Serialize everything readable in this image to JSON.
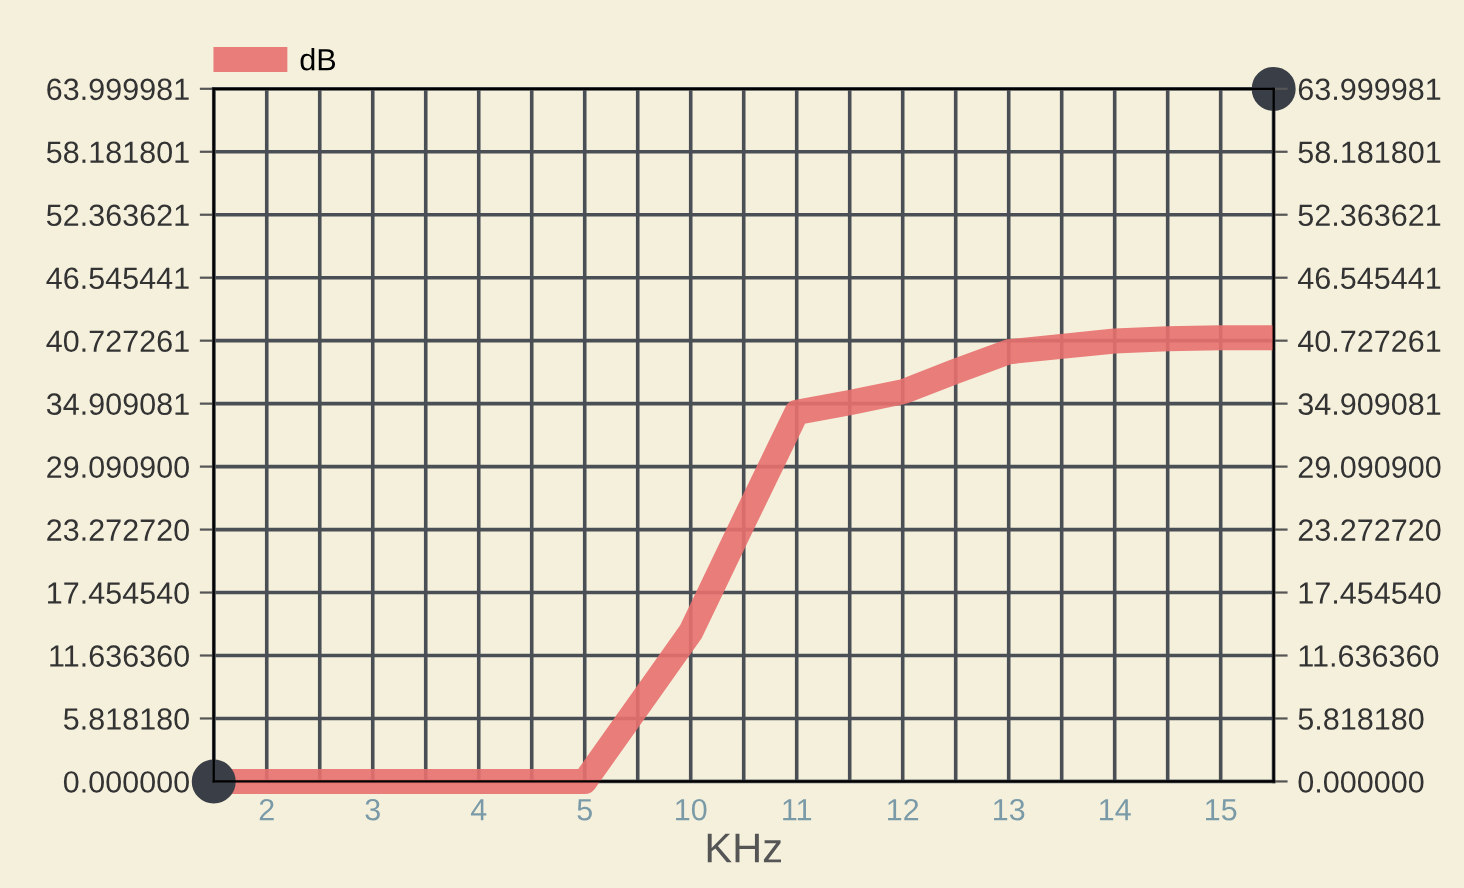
{
  "chart_data": {
    "type": "line",
    "xlabel": "KHz",
    "categories": [
      null,
      "2",
      null,
      "3",
      null,
      "4",
      null,
      "5",
      null,
      "10",
      null,
      "11",
      null,
      "12",
      null,
      "13",
      null,
      "14",
      null,
      "15",
      null
    ],
    "ylim": [
      0,
      63.999981
    ],
    "yticks": [
      {
        "value": 0,
        "label": "0.000000"
      },
      {
        "value": 5.81818,
        "label": "5.818180"
      },
      {
        "value": 11.63636,
        "label": "11.636360"
      },
      {
        "value": 17.45454,
        "label": "17.454540"
      },
      {
        "value": 23.27272,
        "label": "23.272720"
      },
      {
        "value": 29.0909,
        "label": "29.090900"
      },
      {
        "value": 34.909081,
        "label": "34.909081"
      },
      {
        "value": 40.727261,
        "label": "40.727261"
      },
      {
        "value": 46.545441,
        "label": "46.545441"
      },
      {
        "value": 52.363621,
        "label": "52.363621"
      },
      {
        "value": 58.181801,
        "label": "58.181801"
      },
      {
        "value": 63.999981,
        "label": "63.999981"
      }
    ],
    "y2lim": [
      0,
      63.999981
    ],
    "y2ticks": [
      {
        "value": 0,
        "label": "0.000000"
      },
      {
        "value": 5.81818,
        "label": "5.818180"
      },
      {
        "value": 11.63636,
        "label": "11.636360"
      },
      {
        "value": 17.45454,
        "label": "17.454540"
      },
      {
        "value": 23.27272,
        "label": "23.272720"
      },
      {
        "value": 29.0909,
        "label": "29.090900"
      },
      {
        "value": 34.909081,
        "label": "34.909081"
      },
      {
        "value": 40.727261,
        "label": "40.727261"
      },
      {
        "value": 46.545441,
        "label": "46.545441"
      },
      {
        "value": 52.363621,
        "label": "52.363621"
      },
      {
        "value": 58.181801,
        "label": "58.181801"
      },
      {
        "value": 63.999981,
        "label": "63.999981"
      }
    ],
    "series": [
      {
        "name": "dB",
        "color": "#e8706e",
        "values": [
          0,
          0,
          0,
          0,
          0,
          0,
          0,
          0,
          6.9,
          13.8,
          24,
          34.1,
          35,
          36.0,
          37.9,
          39.7,
          40.2,
          40.7,
          40.9,
          41.0,
          41.0
        ]
      },
      {
        "type": "scatter",
        "color": "#3a3f47",
        "values": [
          0,
          null,
          null,
          null,
          null,
          null,
          null,
          null,
          null,
          null,
          null,
          null,
          null,
          null,
          null,
          null,
          null,
          null,
          null,
          null,
          63.99
        ],
        "marker": "circle"
      }
    ],
    "grid": true,
    "legend": "top left",
    "line_style": "solid"
  }
}
